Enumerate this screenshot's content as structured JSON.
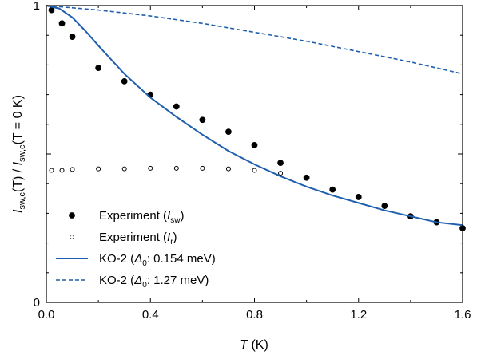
{
  "chart_data": {
    "type": "scatter",
    "title": "",
    "xlabel": {
      "var": "T",
      "rest": " (K)"
    },
    "ylabel": {
      "p1": "I",
      "s1": "sw,c",
      "p2": "(T) / ",
      "p3": "I",
      "s2": "sw,c",
      "p4": "(T = 0 K)"
    },
    "xlim": [
      0,
      1.6
    ],
    "ylim": [
      0,
      1.0
    ],
    "xticks": [
      "0.0",
      "0.4",
      "0.8",
      "1.2",
      "1.6"
    ],
    "yticks": [
      "0",
      "1"
    ],
    "grid": false,
    "legend_position": "bottom-left",
    "series": [
      {
        "name": {
          "a": "Experiment (",
          "b": "I",
          "c": "sw",
          "d": ")"
        },
        "marker": "filled-circle",
        "color": "#000000",
        "x": [
          0.02,
          0.06,
          0.1,
          0.2,
          0.3,
          0.4,
          0.5,
          0.6,
          0.7,
          0.8,
          0.9,
          1.0,
          1.1,
          1.2,
          1.3,
          1.4,
          1.5,
          1.6
        ],
        "y": [
          0.985,
          0.94,
          0.895,
          0.79,
          0.745,
          0.7,
          0.66,
          0.615,
          0.575,
          0.53,
          0.47,
          0.42,
          0.38,
          0.355,
          0.325,
          0.29,
          0.27,
          0.25
        ]
      },
      {
        "name": {
          "a": "Experiment (",
          "b": "I",
          "c": "r",
          "d": ")"
        },
        "marker": "open-circle",
        "color": "#000000",
        "x": [
          0.02,
          0.06,
          0.1,
          0.2,
          0.3,
          0.4,
          0.5,
          0.6,
          0.7,
          0.8,
          0.9
        ],
        "y": [
          0.445,
          0.445,
          0.448,
          0.45,
          0.45,
          0.452,
          0.452,
          0.452,
          0.45,
          0.445,
          0.435
        ]
      },
      {
        "name": {
          "a": "KO-2 (",
          "b": "Δ",
          "c": "0",
          "d": ": 0.154 meV)"
        },
        "style": "solid",
        "color": "#1f5fae",
        "x": [
          0,
          0.05,
          0.1,
          0.15,
          0.2,
          0.3,
          0.4,
          0.5,
          0.6,
          0.7,
          0.8,
          0.9,
          1.0,
          1.1,
          1.2,
          1.3,
          1.4,
          1.5,
          1.6
        ],
        "y": [
          1.0,
          0.99,
          0.96,
          0.915,
          0.865,
          0.77,
          0.69,
          0.625,
          0.565,
          0.51,
          0.465,
          0.425,
          0.39,
          0.36,
          0.335,
          0.31,
          0.29,
          0.27,
          0.26
        ]
      },
      {
        "name": {
          "a": "KO-2 (",
          "b": "Δ",
          "c": "0",
          "d": ": 1.27 meV)"
        },
        "style": "dashed",
        "color": "#1f5fae",
        "x": [
          0,
          0.2,
          0.4,
          0.6,
          0.8,
          1.0,
          1.2,
          1.4,
          1.6
        ],
        "y": [
          1.0,
          0.985,
          0.965,
          0.94,
          0.91,
          0.88,
          0.845,
          0.81,
          0.77
        ]
      }
    ]
  }
}
